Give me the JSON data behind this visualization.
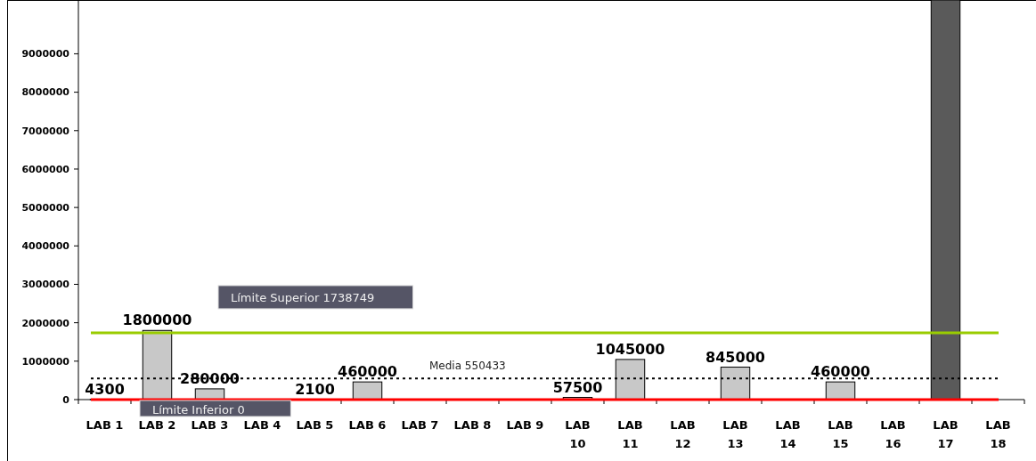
{
  "chart_data": {
    "type": "bar",
    "categories": [
      "LAB 1",
      "LAB 2",
      "LAB 3",
      "LAB 4",
      "LAB 5",
      "LAB 6",
      "LAB 7",
      "LAB 8",
      "LAB 9",
      "LAB 10",
      "LAB 11",
      "LAB 12",
      "LAB 13",
      "LAB 14",
      "LAB 15",
      "LAB 16",
      "LAB 17",
      "LAB 18"
    ],
    "values": [
      4300,
      1800000,
      280000,
      0,
      2100,
      460000,
      0,
      0,
      0,
      57500,
      1045000,
      0,
      845000,
      0,
      460000,
      0,
      10400000,
      0
    ],
    "colors": [
      "#c8c8c8",
      "#c8c8c8",
      "#c8c8c8",
      "#c8c8c8",
      "#c8c8c8",
      "#c8c8c8",
      "#c8c8c8",
      "#c8c8c8",
      "#c8c8c8",
      "#c8c8c8",
      "#c8c8c8",
      "#c8c8c8",
      "#c8c8c8",
      "#c8c8c8",
      "#c8c8c8",
      "#c8c8c8",
      "#5a5a5a",
      "#c8c8c8"
    ],
    "value_labels": [
      "4300",
      "1800000",
      "280000",
      null,
      "2100",
      "460000",
      null,
      null,
      null,
      "57500",
      "1045000",
      null,
      "845000",
      null,
      "460000",
      null,
      null,
      null
    ],
    "ylim": [
      0,
      10400000
    ],
    "yticks": [
      0,
      1000000,
      2000000,
      3000000,
      4000000,
      5000000,
      6000000,
      7000000,
      8000000,
      9000000
    ],
    "ref_lines": [
      {
        "axis": "y",
        "value": 1738749,
        "label": "Límite Superior 1738749",
        "color": "#99cc00",
        "line_style": "solid"
      },
      {
        "axis": "y",
        "value": 550433,
        "label": "Media 550433",
        "color": "#000000",
        "line_style": "dotted"
      },
      {
        "axis": "y",
        "value": 0,
        "label": "Límite Inferior 0",
        "color": "#ff0000",
        "line_style": "solid"
      }
    ],
    "grid": false
  }
}
